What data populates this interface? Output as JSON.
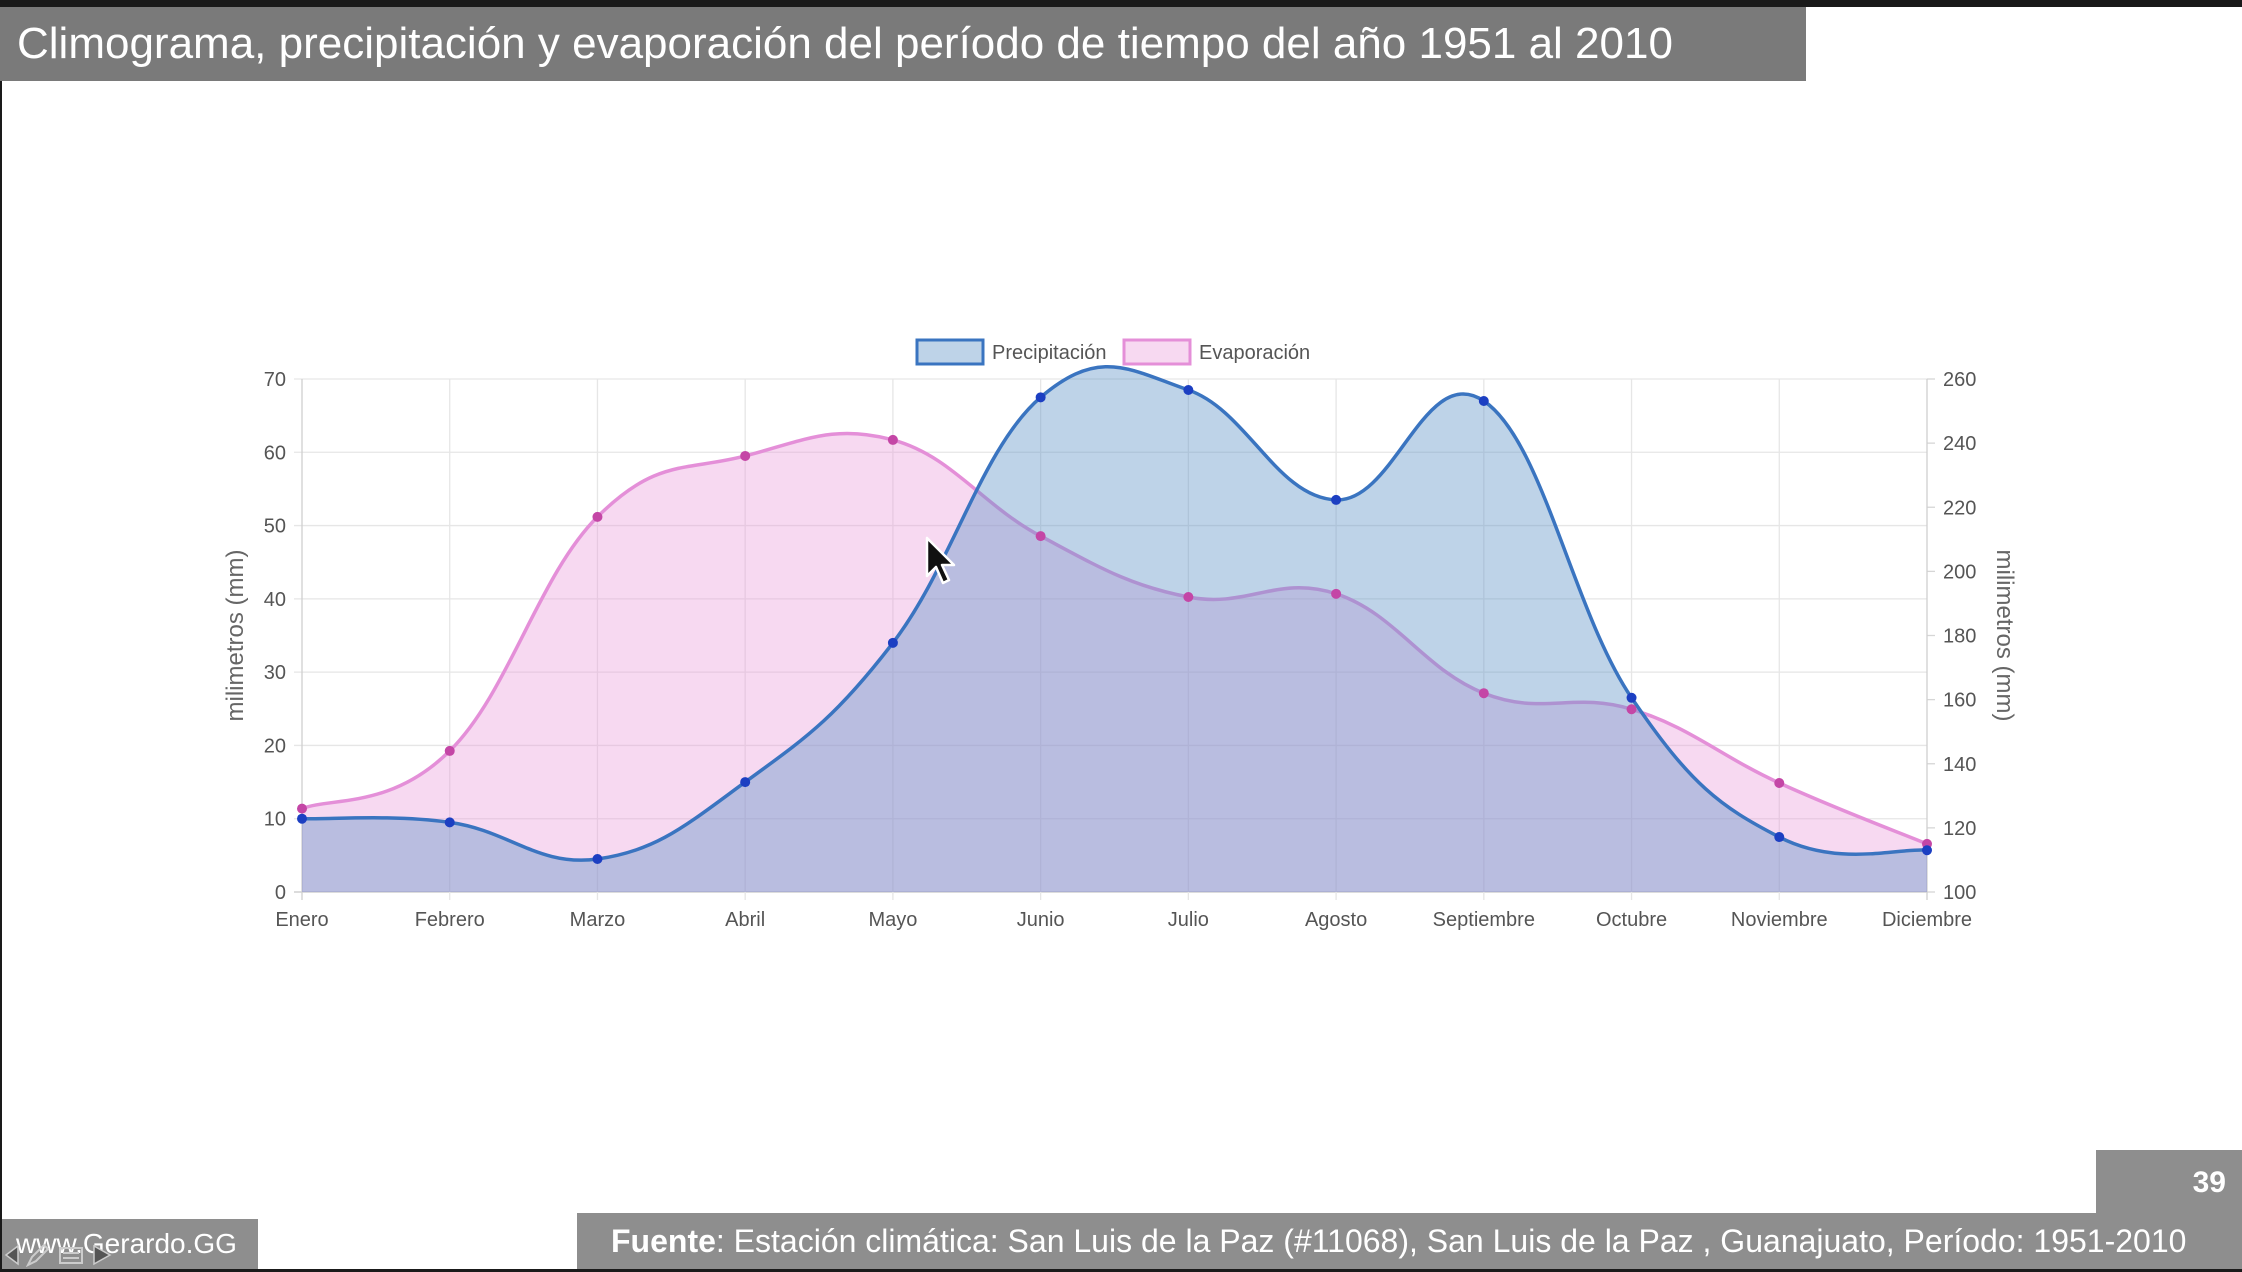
{
  "slide": {
    "title": "Climograma, precipitación y evaporación del período de tiempo del año 1951 al 2010",
    "page_number": "39",
    "source_label": "Fuente",
    "source_text": ": Estación climática: San Luis de la Paz (#11068), San Luis de la Paz , Guanajuato, Período: 1951-2010",
    "website": "www.Gerardo.GG"
  },
  "chart_data": {
    "type": "area",
    "categories": [
      "Enero",
      "Febrero",
      "Marzo",
      "Abril",
      "Mayo",
      "Junio",
      "Julio",
      "Agosto",
      "Septiembre",
      "Octubre",
      "Noviembre",
      "Diciembre"
    ],
    "series": [
      {
        "name": "Precipitación",
        "axis": "left",
        "color": "#3a74c0",
        "fill": "rgba(100,150,200,0.42)",
        "point_color": "#1c3fc2",
        "values": [
          10,
          9.5,
          4.5,
          15,
          34,
          67.5,
          68.5,
          53.5,
          67,
          26.5,
          7.5,
          5.7
        ]
      },
      {
        "name": "Evaporación",
        "axis": "right",
        "color": "#e48fd8",
        "fill": "rgba(232,150,215,0.36)",
        "point_color": "#c446a6",
        "values": [
          126,
          144,
          217,
          236,
          241,
          211,
          192,
          193,
          162,
          157,
          134,
          115
        ]
      }
    ],
    "y_left": {
      "label": "milimetros (mm)",
      "min": 0,
      "max": 70,
      "ticks": [
        0,
        10,
        20,
        30,
        40,
        50,
        60,
        70
      ]
    },
    "y_right": {
      "label": "milimetros (mm)",
      "min": 100,
      "max": 260,
      "ticks": [
        100,
        120,
        140,
        160,
        180,
        200,
        220,
        240,
        260
      ]
    },
    "grid": true,
    "legend_position": "top-center"
  }
}
